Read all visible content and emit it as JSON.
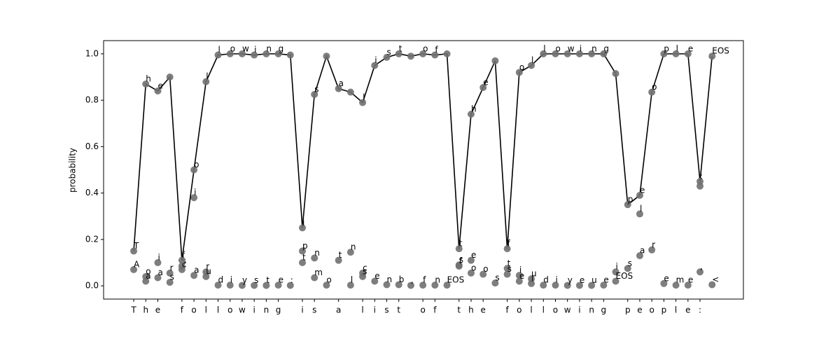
{
  "chart_data": {
    "type": "line",
    "ylabel": "probability",
    "categories": [
      "T",
      "h",
      "e",
      null,
      "f",
      "o",
      "l",
      "l",
      "o",
      "w",
      "i",
      "n",
      "g",
      null,
      "i",
      "s",
      null,
      "a",
      null,
      "l",
      "i",
      "s",
      "t",
      null,
      "o",
      "f",
      null,
      "t",
      "h",
      "e",
      null,
      "f",
      "o",
      "l",
      "l",
      "o",
      "w",
      "i",
      "n",
      "g",
      null,
      "p",
      "e",
      "o",
      "p",
      "l",
      "e",
      ":",
      null
    ],
    "xlim": [
      -2.5,
      50.6
    ],
    "ylim": [
      -0.057,
      1.057
    ],
    "yticks": [
      {
        "value": 0,
        "label": "0.0"
      },
      {
        "value": 0.2,
        "label": "0.2"
      },
      {
        "value": 0.4,
        "label": "0.4"
      },
      {
        "value": 0.6,
        "label": "0.6"
      },
      {
        "value": 0.8,
        "label": "0.8"
      },
      {
        "value": 1,
        "label": "1.0"
      }
    ],
    "series": [
      {
        "color": "#000000",
        "marker_color": "#707070",
        "values": [
          0.15,
          0.87,
          0.84,
          0.9,
          0.11,
          0.5,
          0.88,
          0.995,
          1,
          1,
          0.995,
          1,
          1,
          0.995,
          0.25,
          0.825,
          0.99,
          0.85,
          0.835,
          0.79,
          0.95,
          0.985,
          1,
          0.99,
          1,
          0.995,
          1,
          0.16,
          0.74,
          0.855,
          0.97,
          0.16,
          0.92,
          0.95,
          1,
          1,
          1,
          1,
          1,
          1,
          0.915,
          0.35,
          0.39,
          0.835,
          1,
          1,
          1,
          0.45,
          0.99
        ],
        "labels": [
          "T",
          "h",
          "e",
          null,
          "f",
          "o",
          "l",
          "l",
          "o",
          "w",
          "i",
          "n",
          "g",
          null,
          "i",
          "s",
          null,
          "a",
          null,
          "l",
          "i",
          "s",
          "t",
          null,
          "o",
          "f",
          null,
          "t",
          "h",
          "e",
          null,
          "f",
          "o",
          "l",
          "l",
          "o",
          "w",
          "i",
          "n",
          "g",
          null,
          "p",
          "e",
          "o",
          "p",
          "l",
          "e",
          ":",
          "EOS"
        ]
      }
    ],
    "alternatives": [
      {
        "index": 0,
        "value": 0.07,
        "label": "A"
      },
      {
        "index": 1,
        "value": 0.04,
        "label": "o"
      },
      {
        "index": 1,
        "value": 0.02,
        "label": "a"
      },
      {
        "index": 2,
        "value": 0.1,
        "label": "i"
      },
      {
        "index": 2,
        "value": 0.035,
        "label": "a"
      },
      {
        "index": 3,
        "value": 0.055,
        "label": "r"
      },
      {
        "index": 3,
        "value": 0.015,
        "label": "s"
      },
      {
        "index": 4,
        "value": 0.085,
        "label": "s"
      },
      {
        "index": 4,
        "value": 0.07,
        "label": "c"
      },
      {
        "index": 5,
        "value": 0.38,
        "label": "i"
      },
      {
        "index": 5,
        "value": 0.045,
        "label": "a"
      },
      {
        "index": 6,
        "value": 0.06,
        "label": "r"
      },
      {
        "index": 6,
        "value": 0.04,
        "label": "u"
      },
      {
        "index": 7,
        "value": 0.003,
        "label": "d"
      },
      {
        "index": 8,
        "value": 0.003,
        "label": "i"
      },
      {
        "index": 9,
        "value": 0.002,
        "label": "y"
      },
      {
        "index": 10,
        "value": 0.002,
        "label": "s"
      },
      {
        "index": 11,
        "value": 0.002,
        "label": "t"
      },
      {
        "index": 12,
        "value": 0.003,
        "label": "e"
      },
      {
        "index": 13,
        "value": 0.002,
        "label": ":"
      },
      {
        "index": 14,
        "value": 0.15,
        "label": "p"
      },
      {
        "index": 14,
        "value": 0.1,
        "label": "t"
      },
      {
        "index": 15,
        "value": 0.12,
        "label": "n"
      },
      {
        "index": 15,
        "value": 0.035,
        "label": "m"
      },
      {
        "index": 16,
        "value": 0.003,
        "label": "o"
      },
      {
        "index": 17,
        "value": 0.11,
        "label": "t"
      },
      {
        "index": 18,
        "value": 0.145,
        "label": "n"
      },
      {
        "index": 18,
        "value": 0.003,
        "label": "l"
      },
      {
        "index": 19,
        "value": 0.055,
        "label": "c"
      },
      {
        "index": 19,
        "value": 0.04,
        "label": "s"
      },
      {
        "index": 20,
        "value": 0.02,
        "label": "e"
      },
      {
        "index": 21,
        "value": 0.005,
        "label": "n"
      },
      {
        "index": 22,
        "value": 0.005,
        "label": "b"
      },
      {
        "index": 23,
        "value": 0.002,
        "label": ","
      },
      {
        "index": 24,
        "value": 0.003,
        "label": "f"
      },
      {
        "index": 25,
        "value": 0.003,
        "label": "n"
      },
      {
        "index": 26,
        "value": 0.003,
        "label": "EOS"
      },
      {
        "index": 27,
        "value": 0.09,
        "label": "s"
      },
      {
        "index": 27,
        "value": 0.085,
        "label": "f"
      },
      {
        "index": 28,
        "value": 0.11,
        "label": "e"
      },
      {
        "index": 28,
        "value": 0.055,
        "label": "o"
      },
      {
        "index": 29,
        "value": 0.05,
        "label": "o"
      },
      {
        "index": 30,
        "value": 0.012,
        "label": "s"
      },
      {
        "index": 31,
        "value": 0.075,
        "label": "t"
      },
      {
        "index": 31,
        "value": 0.05,
        "label": "s"
      },
      {
        "index": 32,
        "value": 0.045,
        "label": "i"
      },
      {
        "index": 32,
        "value": 0.02,
        "label": "e"
      },
      {
        "index": 33,
        "value": 0.03,
        "label": "u"
      },
      {
        "index": 33,
        "value": 0.01,
        "label": "l"
      },
      {
        "index": 34,
        "value": 0.003,
        "label": "d"
      },
      {
        "index": 35,
        "value": 0.003,
        "label": "i"
      },
      {
        "index": 36,
        "value": 0.002,
        "label": "y"
      },
      {
        "index": 37,
        "value": 0.002,
        "label": "e"
      },
      {
        "index": 38,
        "value": 0.002,
        "label": "u"
      },
      {
        "index": 39,
        "value": 0.003,
        "label": "e"
      },
      {
        "index": 40,
        "value": 0.06,
        "label": "i"
      },
      {
        "index": 40,
        "value": 0.02,
        "label": "EOS"
      },
      {
        "index": 41,
        "value": 0.075,
        "label": "s"
      },
      {
        "index": 42,
        "value": 0.31,
        "label": "l"
      },
      {
        "index": 42,
        "value": 0.13,
        "label": "a"
      },
      {
        "index": 43,
        "value": 0.155,
        "label": "r"
      },
      {
        "index": 44,
        "value": 0.01,
        "label": "e"
      },
      {
        "index": 45,
        "value": 0.003,
        "label": "m"
      },
      {
        "index": 46,
        "value": 0.003,
        "label": "e"
      },
      {
        "index": 47,
        "value": 0.43,
        "label": null
      },
      {
        "index": 47,
        "value": 0.06,
        "label": ","
      },
      {
        "index": 48,
        "value": 0.005,
        "label": "<"
      }
    ]
  }
}
